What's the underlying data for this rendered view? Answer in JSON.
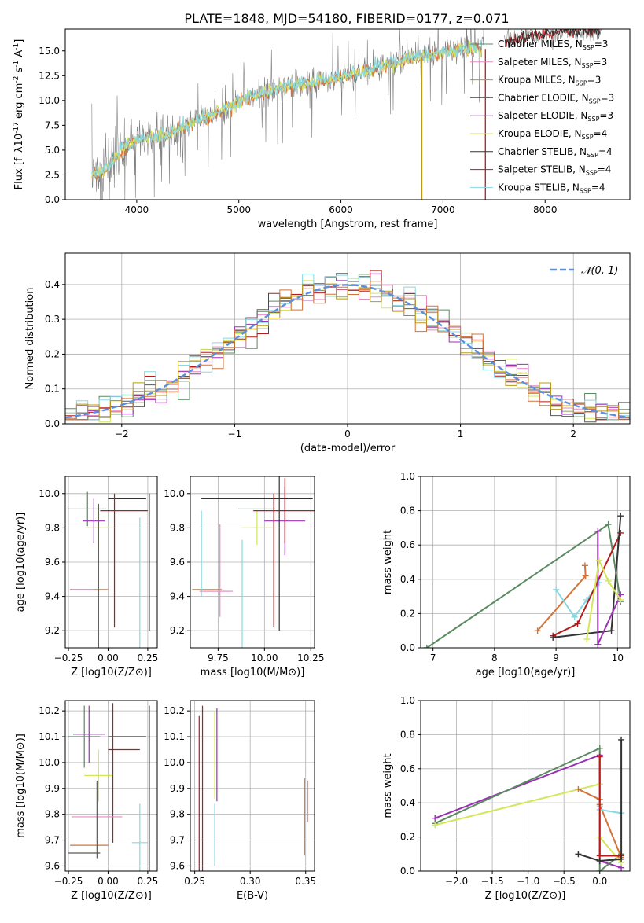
{
  "figure": {
    "title": "PLATE=1848, MJD=54180, FIBERID=0177, z=0.071",
    "colors": {
      "chabrier_miles": "#5a8a60",
      "salpeter_miles": "#e58ac0",
      "kroupa_miles": "#b99a16",
      "chabrier_elodie": "#595959",
      "salpeter_elodie": "#9a30b4",
      "kroupa_elodie": "#d4e65a",
      "chabrier_stelib": "#333333",
      "salpeter_stelib": "#b41c1c",
      "kroupa_stelib": "#88d8e0",
      "orange": "#d2733a",
      "data": "#808080",
      "normal": "#5b8fde"
    }
  },
  "chart_data": [
    {
      "id": "spectrum",
      "type": "line",
      "xlabel": "wavelength [Angstrom, rest frame]",
      "ylabel": "Flux [f_λ10^-17 erg cm^-2 s^-1 A^-1]",
      "xlim": [
        3300,
        8830
      ],
      "ylim": [
        0,
        17.2
      ],
      "xticks": [
        "4000",
        "5000",
        "6000",
        "7000",
        "8000"
      ],
      "yticks": [
        "0.0",
        "2.5",
        "5.0",
        "7.5",
        "10.0",
        "12.5",
        "15.0"
      ],
      "legend_position": "right",
      "legend": [
        "Chabrier MILES, N_SSP=3",
        "Salpeter MILES, N_SSP=3",
        "Kroupa MILES, N_SSP=3",
        "Chabrier ELODIE, N_SSP=3",
        "Salpeter ELODIE, N_SSP=3",
        "Kroupa ELODIE, N_SSP=4",
        "Chabrier STELIB, N_SSP=4",
        "Salpeter STELIB, N_SSP=4",
        "Kroupa STELIB, N_SSP=4"
      ],
      "continuum": [
        [
          3560,
          2.6
        ],
        [
          3700,
          3.1
        ],
        [
          3800,
          4.4
        ],
        [
          3900,
          5.4
        ],
        [
          4000,
          6.1
        ],
        [
          4100,
          6.2
        ],
        [
          4200,
          6.4
        ],
        [
          4300,
          6.5
        ],
        [
          4500,
          7.6
        ],
        [
          4700,
          8.4
        ],
        [
          4900,
          9.3
        ],
        [
          5100,
          10.3
        ],
        [
          5300,
          10.9
        ],
        [
          5500,
          11.5
        ],
        [
          5700,
          11.8
        ],
        [
          5900,
          12.2
        ],
        [
          6100,
          12.5
        ],
        [
          6300,
          13.1
        ],
        [
          6500,
          13.8
        ],
        [
          6700,
          14.4
        ],
        [
          6900,
          14.6
        ],
        [
          7100,
          15.1
        ],
        [
          7300,
          15.4
        ],
        [
          7350,
          15.2
        ]
      ],
      "red_continuum": [
        [
          7700,
          16.0
        ],
        [
          7900,
          16.6
        ],
        [
          8100,
          16.9
        ],
        [
          8300,
          17.0
        ],
        [
          8500,
          17.1
        ]
      ]
    },
    {
      "id": "residuals",
      "type": "histogram",
      "xlabel": "(data-model)/error",
      "ylabel": "Normed distribution",
      "xlim": [
        -2.5,
        2.5
      ],
      "ylim": [
        0,
        0.49
      ],
      "xticks": [
        "−2",
        "−1",
        "0",
        "1",
        "2"
      ],
      "yticks": [
        "0.0",
        "0.1",
        "0.2",
        "0.3",
        "0.4"
      ],
      "bins": 50,
      "legend": "𝒩(0, 1)",
      "peak": 0.4
    },
    {
      "id": "age-vs-z",
      "type": "scatter",
      "xlabel": "Z [log10(Z/Z⊙)]",
      "ylabel": "age [log10(age/yr)]",
      "xlim": [
        -0.27,
        0.31
      ],
      "ylim": [
        9.1,
        10.1
      ],
      "xticks": [
        "−0.25",
        "0.00",
        "0.25"
      ],
      "yticks": [
        "9.2",
        "9.4",
        "9.6",
        "9.8",
        "10.0"
      ],
      "points": [
        {
          "x": -0.13,
          "y": 9.91,
          "xerr": 0.12,
          "yerr": 0.1,
          "c": "chabrier_miles"
        },
        {
          "x": -0.09,
          "y": 9.84,
          "xerr": 0.07,
          "yerr": 0.13,
          "c": "salpeter_elodie"
        },
        {
          "x": -0.06,
          "y": 9.8,
          "xerr": 0.08,
          "yerr": 0.12,
          "c": "kroupa_elodie"
        },
        {
          "x": 0.12,
          "y": 9.97,
          "xerr": 0.12,
          "yerr": 0.0,
          "c": "chabrier_stelib"
        },
        {
          "x": 0.1,
          "y": 9.9,
          "xerr": 0.15,
          "yerr": 0.0,
          "c": "salpeter_stelib"
        },
        {
          "x": 0.04,
          "y": 9.61,
          "xerr": 0.0,
          "yerr": 0.39,
          "c": "salpeter_stelib"
        },
        {
          "x": -0.12,
          "y": 9.44,
          "xerr": 0.12,
          "yerr": 0.0,
          "c": "orange"
        },
        {
          "x": -0.06,
          "y": 9.44,
          "xerr": 0.0,
          "yerr": 0.5,
          "c": "chabrier_elodie"
        },
        {
          "x": 0.2,
          "y": 9.43,
          "xerr": 0.0,
          "yerr": 0.43,
          "c": "kroupa_stelib"
        },
        {
          "x": -0.16,
          "y": 9.44,
          "xerr": 0.07,
          "yerr": 0.0,
          "c": "salpeter_miles"
        },
        {
          "x": 0.26,
          "y": 9.6,
          "xerr": 0.0,
          "yerr": 0.4,
          "c": "chabrier_stelib"
        }
      ]
    },
    {
      "id": "age-vs-mass",
      "type": "scatter",
      "xlabel": "mass [log10(M/M⊙)]",
      "xlim": [
        9.6,
        10.27
      ],
      "ylim": [
        9.1,
        10.1
      ],
      "xticks": [
        "9.75",
        "10.00",
        "10.25"
      ],
      "yticks": [
        "9.2",
        "9.4",
        "9.6",
        "9.8",
        "10.0"
      ],
      "points": [
        {
          "x": 9.96,
          "y": 9.91,
          "xerr": 0.1,
          "yerr": 0.0,
          "c": "chabrier_miles"
        },
        {
          "x": 10.11,
          "y": 9.84,
          "xerr": 0.11,
          "yerr": 0.2,
          "c": "salpeter_elodie"
        },
        {
          "x": 9.96,
          "y": 9.8,
          "xerr": 0.08,
          "yerr": 0.1,
          "c": "kroupa_elodie"
        },
        {
          "x": 9.96,
          "y": 9.97,
          "xerr": 0.3,
          "yerr": 0.0,
          "c": "chabrier_stelib"
        },
        {
          "x": 10.11,
          "y": 9.9,
          "xerr": 0.17,
          "yerr": 0.19,
          "c": "salpeter_stelib"
        },
        {
          "x": 10.05,
          "y": 9.61,
          "xerr": 0.0,
          "yerr": 0.39,
          "c": "salpeter_stelib"
        },
        {
          "x": 9.69,
          "y": 9.44,
          "xerr": 0.08,
          "yerr": 0.0,
          "c": "orange"
        },
        {
          "x": 9.66,
          "y": 9.65,
          "xerr": 0.0,
          "yerr": 0.25,
          "c": "kroupa_stelib"
        },
        {
          "x": 9.76,
          "y": 9.55,
          "xerr": 0.0,
          "yerr": 0.27,
          "c": "salpeter_miles"
        },
        {
          "x": 9.73,
          "y": 9.43,
          "xerr": 0.08,
          "yerr": 0.0,
          "c": "kroupa_stelib"
        },
        {
          "x": 9.88,
          "y": 9.4,
          "xerr": 0.0,
          "yerr": 0.33,
          "c": "kroupa_stelib"
        },
        {
          "x": 10.08,
          "y": 9.65,
          "xerr": 0.0,
          "yerr": 0.45,
          "c": "chabrier_stelib"
        },
        {
          "x": 9.74,
          "y": 9.43,
          "xerr": 0.09,
          "yerr": 0.0,
          "c": "salpeter_miles"
        }
      ]
    },
    {
      "id": "weight-vs-age",
      "type": "line",
      "xlabel": "age [log10(age/yr)]",
      "ylabel": "mass weight",
      "xlim": [
        6.8,
        10.2
      ],
      "ylim": [
        0,
        1
      ],
      "xticks": [
        "7",
        "8",
        "9",
        "10"
      ],
      "yticks": [
        "0.0",
        "0.2",
        "0.4",
        "0.6",
        "0.8",
        "1.0"
      ],
      "series": [
        {
          "c": "chabrier_miles",
          "pts": [
            [
              6.9,
              0.0
            ],
            [
              9.85,
              0.72
            ],
            [
              10.05,
              0.27
            ]
          ]
        },
        {
          "c": "orange",
          "pts": [
            [
              8.7,
              0.1
            ],
            [
              9.48,
              0.42
            ],
            [
              9.47,
              0.48
            ]
          ]
        },
        {
          "c": "kroupa_stelib",
          "pts": [
            [
              9.0,
              0.34
            ],
            [
              9.3,
              0.18
            ],
            [
              9.5,
              0.28
            ],
            [
              9.7,
              0.38
            ]
          ]
        },
        {
          "c": "salpeter_stelib",
          "pts": [
            [
              8.95,
              0.07
            ],
            [
              9.35,
              0.14
            ],
            [
              10.05,
              0.67
            ]
          ]
        },
        {
          "c": "chabrier_stelib",
          "pts": [
            [
              8.95,
              0.06
            ],
            [
              9.9,
              0.1
            ],
            [
              10.05,
              0.77
            ]
          ]
        },
        {
          "c": "salpeter_elodie",
          "pts": [
            [
              9.68,
              0.68
            ],
            [
              9.68,
              0.02
            ],
            [
              10.05,
              0.31
            ]
          ]
        },
        {
          "c": "kroupa_elodie",
          "pts": [
            [
              9.5,
              0.05
            ],
            [
              9.7,
              0.51
            ],
            [
              9.85,
              0.39
            ],
            [
              10.05,
              0.28
            ]
          ]
        }
      ]
    },
    {
      "id": "mass-vs-z",
      "type": "scatter",
      "xlabel": "Z [log10(Z/Z⊙)]",
      "ylabel": "mass [log10(M/M⊙)]",
      "xlim": [
        -0.27,
        0.31
      ],
      "ylim": [
        9.58,
        10.24
      ],
      "xticks": [
        "−0.25",
        "0.00",
        "0.25"
      ],
      "yticks": [
        "9.6",
        "9.7",
        "9.8",
        "9.9",
        "10.0",
        "10.1",
        "10.2"
      ],
      "points": [
        {
          "x": -0.15,
          "y": 10.1,
          "xerr": 0.1,
          "yerr": 0.12,
          "c": "chabrier_miles"
        },
        {
          "x": -0.12,
          "y": 10.11,
          "xerr": 0.1,
          "yerr": 0.11,
          "c": "salpeter_elodie"
        },
        {
          "x": -0.06,
          "y": 9.95,
          "xerr": 0.09,
          "yerr": 0.1,
          "c": "kroupa_elodie"
        },
        {
          "x": 0.12,
          "y": 10.1,
          "xerr": 0.12,
          "yerr": 0.0,
          "c": "chabrier_stelib"
        },
        {
          "x": 0.1,
          "y": 10.05,
          "xerr": 0.1,
          "yerr": 0.0,
          "c": "salpeter_stelib"
        },
        {
          "x": 0.03,
          "y": 9.96,
          "xerr": 0.0,
          "yerr": 0.27,
          "c": "salpeter_stelib"
        },
        {
          "x": -0.12,
          "y": 9.68,
          "xerr": 0.12,
          "yerr": 0.0,
          "c": "orange"
        },
        {
          "x": -0.15,
          "y": 9.65,
          "xerr": 0.1,
          "yerr": 0.0,
          "c": "chabrier_elodie"
        },
        {
          "x": -0.07,
          "y": 9.79,
          "xerr": 0.16,
          "yerr": 0.0,
          "c": "salpeter_miles"
        },
        {
          "x": -0.07,
          "y": 9.78,
          "xerr": 0.0,
          "yerr": 0.15,
          "c": "chabrier_elodie"
        },
        {
          "x": 0.2,
          "y": 9.69,
          "xerr": 0.05,
          "yerr": 0.15,
          "c": "kroupa_stelib"
        },
        {
          "x": 0.26,
          "y": 9.87,
          "xerr": 0.0,
          "yerr": 0.35,
          "c": "chabrier_stelib"
        }
      ]
    },
    {
      "id": "mass-vs-ebv",
      "type": "scatter",
      "xlabel": "E(B-V)",
      "xlim": [
        0.246,
        0.358
      ],
      "ylim": [
        9.58,
        10.24
      ],
      "xticks": [
        "0.25",
        "0.30",
        "0.35"
      ],
      "yticks": [
        "9.6",
        "9.7",
        "9.8",
        "9.9",
        "10.0",
        "10.1",
        "10.2"
      ],
      "points": [
        {
          "x": 0.254,
          "y": 9.88,
          "xerr": 0.0,
          "yerr": 0.3,
          "c": "salpeter_stelib"
        },
        {
          "x": 0.257,
          "y": 9.9,
          "xerr": 0.0,
          "yerr": 0.32,
          "c": "salpeter_stelib"
        },
        {
          "x": 0.268,
          "y": 10.03,
          "xerr": 0.0,
          "yerr": 0.17,
          "c": "kroupa_elodie"
        },
        {
          "x": 0.27,
          "y": 10.03,
          "xerr": 0.0,
          "yerr": 0.18,
          "c": "salpeter_elodie"
        },
        {
          "x": 0.268,
          "y": 9.72,
          "xerr": 0.0,
          "yerr": 0.12,
          "c": "kroupa_stelib"
        },
        {
          "x": 0.349,
          "y": 9.79,
          "xerr": 0.0,
          "yerr": 0.15,
          "c": "orange"
        },
        {
          "x": 0.352,
          "y": 9.85,
          "xerr": 0.0,
          "yerr": 0.08,
          "c": "salpeter_miles"
        }
      ]
    },
    {
      "id": "weight-vs-z",
      "type": "line",
      "xlabel": "Z [log10(Z/Z⊙)]",
      "ylabel": "mass weight",
      "xlim": [
        -2.5,
        0.42
      ],
      "ylim": [
        0,
        1
      ],
      "xticks": [
        "−2.0",
        "−1.5",
        "−1.0",
        "−0.5",
        "0.0"
      ],
      "yticks": [
        "0.0",
        "0.2",
        "0.4",
        "0.6",
        "0.8",
        "1.0"
      ],
      "series": [
        {
          "c": "salpeter_elodie",
          "pts": [
            [
              -2.3,
              0.31
            ],
            [
              0.0,
              0.68
            ],
            [
              0.0,
              0.06
            ],
            [
              0.3,
              0.02
            ]
          ]
        },
        {
          "c": "chabrier_miles",
          "pts": [
            [
              -2.3,
              0.28
            ],
            [
              0.0,
              0.72
            ],
            [
              0.0,
              0.0
            ],
            [
              0.3,
              0.1
            ]
          ]
        },
        {
          "c": "kroupa_elodie",
          "pts": [
            [
              -2.3,
              0.27
            ],
            [
              0.0,
              0.51
            ],
            [
              0.0,
              0.2
            ],
            [
              0.3,
              0.05
            ]
          ]
        },
        {
          "c": "orange",
          "pts": [
            [
              -0.3,
              0.48
            ],
            [
              0.0,
              0.42
            ],
            [
              0.0,
              0.39
            ],
            [
              0.3,
              0.08
            ]
          ]
        },
        {
          "c": "kroupa_stelib",
          "pts": [
            [
              0.0,
              0.38
            ],
            [
              0.0,
              0.36
            ],
            [
              0.3,
              0.34
            ]
          ]
        },
        {
          "c": "salpeter_stelib",
          "pts": [
            [
              0.0,
              0.67
            ],
            [
              0.0,
              0.09
            ],
            [
              0.3,
              0.09
            ]
          ]
        },
        {
          "c": "chabrier_stelib",
          "pts": [
            [
              -0.3,
              0.1
            ],
            [
              0.0,
              0.06
            ],
            [
              0.3,
              0.07
            ],
            [
              0.3,
              0.77
            ]
          ]
        }
      ]
    }
  ]
}
